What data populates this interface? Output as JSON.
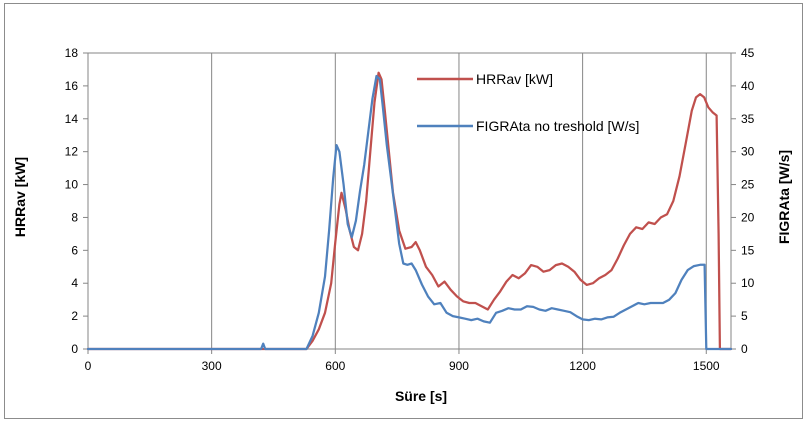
{
  "chart_data": {
    "type": "line",
    "xlabel": "Süre [s]",
    "ylabel_left": "HRRav [kW]",
    "ylabel_right": "FIGRAta [W/s]",
    "xlim": [
      0,
      1560
    ],
    "xticks": [
      0,
      300,
      600,
      900,
      1200,
      1500
    ],
    "ylim_left": [
      0,
      18
    ],
    "yticks_left": [
      0,
      2,
      4,
      6,
      8,
      10,
      12,
      14,
      16,
      18
    ],
    "ylim_right": [
      0,
      45
    ],
    "yticks_right": [
      0,
      5,
      10,
      15,
      20,
      25,
      30,
      35,
      40,
      45
    ],
    "grid": "vertical",
    "legend_position": "top-center",
    "series": [
      {
        "name": "HRRav [kW]",
        "axis": "left",
        "color": "#c0504d",
        "points": [
          [
            0,
            0
          ],
          [
            300,
            0
          ],
          [
            420,
            0
          ],
          [
            530,
            0
          ],
          [
            545,
            0.5
          ],
          [
            560,
            1.2
          ],
          [
            575,
            2.2
          ],
          [
            590,
            4
          ],
          [
            600,
            6.5
          ],
          [
            610,
            8.8
          ],
          [
            615,
            9.5
          ],
          [
            625,
            8.5
          ],
          [
            635,
            7.2
          ],
          [
            645,
            6.2
          ],
          [
            655,
            6.0
          ],
          [
            665,
            7.0
          ],
          [
            675,
            9.0
          ],
          [
            685,
            12.0
          ],
          [
            695,
            15.0
          ],
          [
            705,
            16.8
          ],
          [
            712,
            16.4
          ],
          [
            720,
            14.5
          ],
          [
            730,
            12.0
          ],
          [
            740,
            9.5
          ],
          [
            755,
            7.2
          ],
          [
            770,
            6.1
          ],
          [
            785,
            6.2
          ],
          [
            795,
            6.5
          ],
          [
            805,
            6.0
          ],
          [
            820,
            5.0
          ],
          [
            835,
            4.5
          ],
          [
            850,
            3.8
          ],
          [
            865,
            4.1
          ],
          [
            880,
            3.6
          ],
          [
            895,
            3.2
          ],
          [
            910,
            2.9
          ],
          [
            925,
            2.8
          ],
          [
            940,
            2.8
          ],
          [
            955,
            2.6
          ],
          [
            970,
            2.4
          ],
          [
            985,
            3.0
          ],
          [
            1000,
            3.5
          ],
          [
            1015,
            4.1
          ],
          [
            1030,
            4.5
          ],
          [
            1045,
            4.3
          ],
          [
            1060,
            4.6
          ],
          [
            1075,
            5.1
          ],
          [
            1090,
            5.0
          ],
          [
            1105,
            4.7
          ],
          [
            1120,
            4.8
          ],
          [
            1135,
            5.1
          ],
          [
            1150,
            5.2
          ],
          [
            1165,
            5.0
          ],
          [
            1180,
            4.7
          ],
          [
            1195,
            4.2
          ],
          [
            1210,
            3.9
          ],
          [
            1225,
            4.0
          ],
          [
            1240,
            4.3
          ],
          [
            1255,
            4.5
          ],
          [
            1270,
            4.8
          ],
          [
            1285,
            5.5
          ],
          [
            1300,
            6.3
          ],
          [
            1315,
            7.0
          ],
          [
            1330,
            7.4
          ],
          [
            1345,
            7.3
          ],
          [
            1360,
            7.7
          ],
          [
            1375,
            7.6
          ],
          [
            1390,
            8.0
          ],
          [
            1405,
            8.2
          ],
          [
            1420,
            9.0
          ],
          [
            1435,
            10.5
          ],
          [
            1450,
            12.5
          ],
          [
            1465,
            14.5
          ],
          [
            1475,
            15.3
          ],
          [
            1485,
            15.5
          ],
          [
            1495,
            15.3
          ],
          [
            1505,
            14.7
          ],
          [
            1515,
            14.4
          ],
          [
            1525,
            14.2
          ],
          [
            1530,
            7.0
          ],
          [
            1533,
            0
          ],
          [
            1560,
            0
          ]
        ]
      },
      {
        "name": "FIGRAta no treshold [W/s]",
        "axis": "right",
        "color": "#4f81bd",
        "points": [
          [
            0,
            0
          ],
          [
            300,
            0
          ],
          [
            420,
            0
          ],
          [
            425,
            0.8
          ],
          [
            430,
            0
          ],
          [
            530,
            0
          ],
          [
            545,
            2
          ],
          [
            560,
            5.5
          ],
          [
            575,
            11
          ],
          [
            585,
            18
          ],
          [
            595,
            26
          ],
          [
            603,
            31
          ],
          [
            610,
            30
          ],
          [
            620,
            25
          ],
          [
            630,
            19
          ],
          [
            640,
            17.0
          ],
          [
            650,
            19.5
          ],
          [
            660,
            24
          ],
          [
            670,
            28
          ],
          [
            680,
            33
          ],
          [
            690,
            38
          ],
          [
            700,
            41.5
          ],
          [
            708,
            41.0
          ],
          [
            715,
            37
          ],
          [
            725,
            31
          ],
          [
            735,
            26
          ],
          [
            745,
            21
          ],
          [
            755,
            16
          ],
          [
            765,
            13
          ],
          [
            775,
            12.8
          ],
          [
            785,
            13.0
          ],
          [
            795,
            12.0
          ],
          [
            810,
            9.8
          ],
          [
            825,
            8.0
          ],
          [
            840,
            6.8
          ],
          [
            855,
            7.0
          ],
          [
            870,
            5.5
          ],
          [
            885,
            5.0
          ],
          [
            900,
            4.8
          ],
          [
            915,
            4.6
          ],
          [
            930,
            4.4
          ],
          [
            945,
            4.6
          ],
          [
            960,
            4.2
          ],
          [
            975,
            4.0
          ],
          [
            990,
            5.5
          ],
          [
            1005,
            5.8
          ],
          [
            1020,
            6.2
          ],
          [
            1035,
            6.0
          ],
          [
            1050,
            6.0
          ],
          [
            1065,
            6.5
          ],
          [
            1080,
            6.4
          ],
          [
            1095,
            6.0
          ],
          [
            1110,
            5.8
          ],
          [
            1125,
            6.2
          ],
          [
            1140,
            6.0
          ],
          [
            1155,
            5.8
          ],
          [
            1170,
            5.6
          ],
          [
            1185,
            5.0
          ],
          [
            1200,
            4.5
          ],
          [
            1215,
            4.4
          ],
          [
            1230,
            4.6
          ],
          [
            1245,
            4.5
          ],
          [
            1260,
            4.8
          ],
          [
            1275,
            4.9
          ],
          [
            1290,
            5.5
          ],
          [
            1305,
            6.0
          ],
          [
            1320,
            6.5
          ],
          [
            1335,
            7.0
          ],
          [
            1350,
            6.8
          ],
          [
            1365,
            7.0
          ],
          [
            1380,
            7.0
          ],
          [
            1395,
            7.0
          ],
          [
            1410,
            7.5
          ],
          [
            1425,
            8.5
          ],
          [
            1440,
            10.5
          ],
          [
            1455,
            12.0
          ],
          [
            1470,
            12.6
          ],
          [
            1485,
            12.8
          ],
          [
            1496,
            12.8
          ],
          [
            1500,
            0
          ],
          [
            1560,
            0
          ]
        ]
      }
    ]
  }
}
